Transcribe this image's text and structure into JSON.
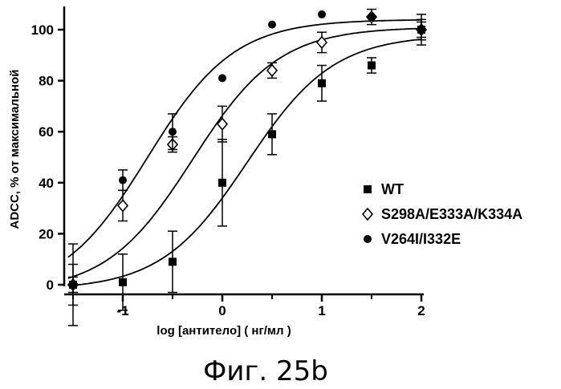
{
  "caption": "Фиг. 25b",
  "chart_data": {
    "type": "scatter",
    "title": "",
    "xlabel": "log [антитело] ( нг/мл )",
    "ylabel": "ADCC, % от максимальной",
    "xlim": [
      -1.5,
      2
    ],
    "ylim": [
      0,
      110
    ],
    "x_ticks": [
      -1,
      0,
      1,
      2
    ],
    "y_ticks": [
      0,
      20,
      40,
      60,
      80,
      100
    ],
    "x_tick_labels": [
      "-1",
      "0",
      "1",
      "2"
    ],
    "y_tick_labels": [
      "0",
      "20",
      "40",
      "60",
      "80",
      "100"
    ],
    "grid": false,
    "legend_position": "right",
    "series": [
      {
        "name": "WT",
        "marker": "filled-square",
        "color": "#000000",
        "points": [
          {
            "x": -1.5,
            "y": 0,
            "err": 3
          },
          {
            "x": -1,
            "y": 1,
            "err": 11
          },
          {
            "x": -0.5,
            "y": 9,
            "err": 12
          },
          {
            "x": 0,
            "y": 40,
            "err": 17
          },
          {
            "x": 0.5,
            "y": 59,
            "err": 8
          },
          {
            "x": 1,
            "y": 79,
            "err": 7
          },
          {
            "x": 1.5,
            "y": 86,
            "err": 3
          },
          {
            "x": 2,
            "y": 100,
            "err": 4
          }
        ],
        "fit": {
          "bottom": -2,
          "top": 98,
          "logEC50": 0.25,
          "hill": 1.0
        }
      },
      {
        "name": "S298A/E333A/K334A",
        "marker": "open-diamond",
        "color": "#000000",
        "points": [
          {
            "x": -1.5,
            "y": 0,
            "err": 16
          },
          {
            "x": -1,
            "y": 31,
            "err": 6
          },
          {
            "x": -0.5,
            "y": 55,
            "err": 3
          },
          {
            "x": 0,
            "y": 63,
            "err": 7
          },
          {
            "x": 0.5,
            "y": 84,
            "err": 3
          },
          {
            "x": 1,
            "y": 95,
            "err": 4
          },
          {
            "x": 1.5,
            "y": 105,
            "err": 3
          },
          {
            "x": 2,
            "y": 100,
            "err": 3
          }
        ],
        "fit": {
          "bottom": -3,
          "top": 101,
          "logEC50": -0.3,
          "hill": 1.0
        }
      },
      {
        "name": "V264I/I332E",
        "marker": "filled-circle",
        "color": "#000000",
        "points": [
          {
            "x": -1.5,
            "y": 0,
            "err": 8
          },
          {
            "x": -1,
            "y": 41,
            "err": 4
          },
          {
            "x": -0.5,
            "y": 60,
            "err": 7
          },
          {
            "x": 0,
            "y": 81,
            "err": 0
          },
          {
            "x": 0.5,
            "y": 102,
            "err": 0
          },
          {
            "x": 1,
            "y": 106,
            "err": 0
          },
          {
            "x": 1.5,
            "y": 105,
            "err": 0
          },
          {
            "x": 2,
            "y": 100,
            "err": 6
          }
        ],
        "fit": {
          "bottom": -4,
          "top": 104,
          "logEC50": -0.75,
          "hill": 1.0
        }
      }
    ]
  }
}
